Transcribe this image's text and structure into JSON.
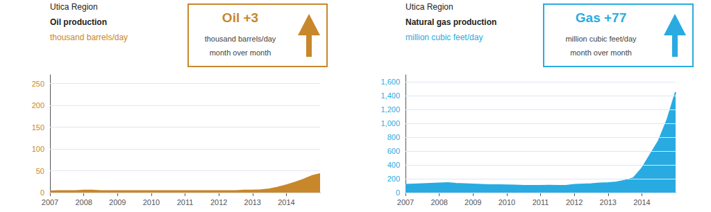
{
  "chart_data": [
    {
      "type": "area",
      "subtitle": "Utica Region",
      "title": "Oil production",
      "ylabel": "thousand barrels/day",
      "color": "#C8872A",
      "x": [
        2007.0,
        2007.25,
        2007.5,
        2007.75,
        2008.0,
        2008.25,
        2008.5,
        2008.75,
        2009.0,
        2009.25,
        2009.5,
        2009.75,
        2010.0,
        2010.25,
        2010.5,
        2010.75,
        2011.0,
        2011.25,
        2011.5,
        2011.75,
        2012.0,
        2012.25,
        2012.5,
        2012.75,
        2013.0,
        2013.25,
        2013.5,
        2013.75,
        2014.0,
        2014.25,
        2014.5,
        2014.75,
        2015.0
      ],
      "values": [
        3,
        4,
        4,
        4,
        5,
        5,
        4,
        4,
        4,
        4,
        4,
        4,
        4,
        4,
        4,
        4,
        4,
        4,
        4,
        4,
        4,
        4,
        4,
        5,
        5,
        6,
        8,
        12,
        17,
        23,
        30,
        38,
        43
      ],
      "xlim": [
        2007,
        2015
      ],
      "xticks": [
        2007,
        2008,
        2009,
        2010,
        2011,
        2012,
        2013,
        2014
      ],
      "ylim": [
        0,
        270
      ],
      "yticks": [
        0,
        50,
        100,
        150,
        200,
        250
      ],
      "grid": true,
      "annotations": [
        "Oil +3",
        "thousand barrels/day",
        "month over month"
      ]
    },
    {
      "type": "area",
      "subtitle": "Utica Region",
      "title": "Natural gas production",
      "ylabel": "million cubic feet/day",
      "color": "#29ABE2",
      "x": [
        2007.0,
        2007.25,
        2007.5,
        2007.75,
        2008.0,
        2008.25,
        2008.5,
        2008.75,
        2009.0,
        2009.25,
        2009.5,
        2009.75,
        2010.0,
        2010.25,
        2010.5,
        2010.75,
        2011.0,
        2011.25,
        2011.5,
        2011.75,
        2012.0,
        2012.25,
        2012.5,
        2012.75,
        2013.0,
        2013.25,
        2013.5,
        2013.75,
        2014.0,
        2014.25,
        2014.5,
        2014.75,
        2015.0
      ],
      "values": [
        115,
        120,
        125,
        130,
        135,
        140,
        130,
        125,
        120,
        115,
        110,
        110,
        108,
        105,
        100,
        100,
        100,
        102,
        100,
        100,
        115,
        120,
        125,
        135,
        140,
        150,
        175,
        210,
        350,
        550,
        750,
        1050,
        1450
      ],
      "xlim": [
        2007,
        2015
      ],
      "xticks": [
        2007,
        2008,
        2009,
        2010,
        2011,
        2012,
        2013,
        2014
      ],
      "ylim": [
        0,
        1700
      ],
      "yticks": [
        0,
        200,
        400,
        600,
        800,
        {
          "value": 1000,
          "label": "1,000"
        },
        {
          "value": 1200,
          "label": "1,200"
        },
        {
          "value": 1400,
          "label": "1,400"
        },
        {
          "value": 1600,
          "label": "1,600"
        }
      ],
      "grid": true,
      "annotations": [
        "Gas +77",
        "million cubic feet/day",
        "month over month"
      ]
    }
  ]
}
